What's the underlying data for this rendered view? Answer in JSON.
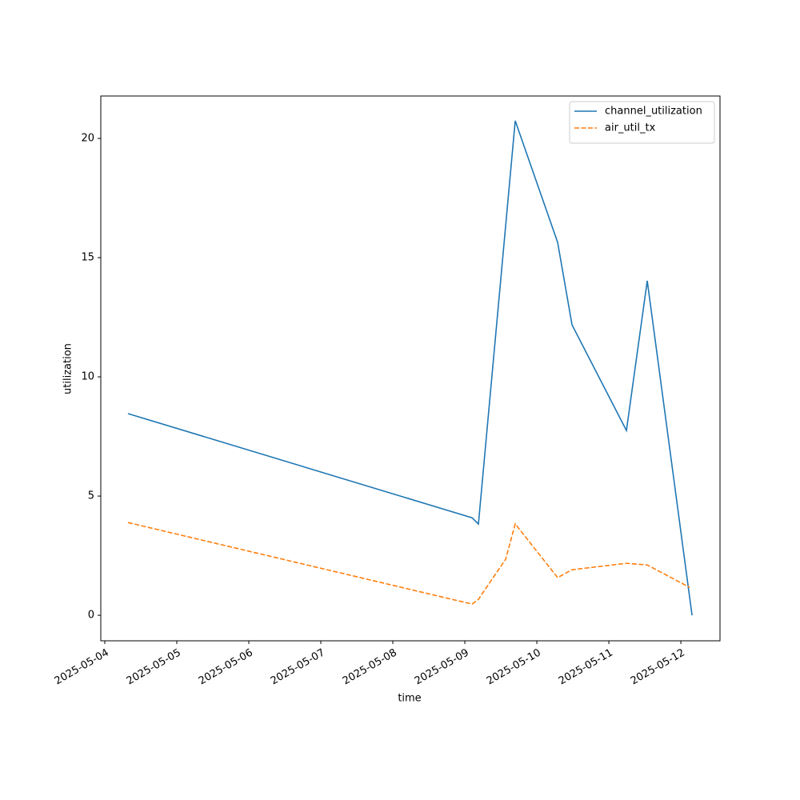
{
  "chart_data": {
    "type": "line",
    "xlabel": "time",
    "ylabel": "utilization",
    "series": [
      {
        "name": "channel_utilization",
        "color": "#1f77b4",
        "linestyle": "solid",
        "x": [
          "2025-05-04 07:43",
          "2025-05-09 02:24",
          "2025-05-09 04:32",
          "2025-05-09 16:48",
          "2025-05-10 06:56",
          "2025-05-10 11:44",
          "2025-05-11 05:52",
          "2025-05-11 12:48",
          "2025-05-12 03:44"
        ],
        "values": [
          8.46,
          4.09,
          3.83,
          20.74,
          15.64,
          12.18,
          7.75,
          14.03,
          0
        ]
      },
      {
        "name": "air_util_tx",
        "color": "#ff7f0e",
        "linestyle": "dashed",
        "x": [
          "2025-05-04 07:43",
          "2025-05-09 02:24",
          "2025-05-09 04:32",
          "2025-05-09 13:36",
          "2025-05-09 16:48",
          "2025-05-10 06:56",
          "2025-05-10 11:44",
          "2025-05-11 05:52",
          "2025-05-11 12:48",
          "2025-05-12 02:56"
        ],
        "values": [
          3.89,
          0.47,
          0.67,
          2.35,
          3.83,
          1.58,
          1.91,
          2.18,
          2.11,
          1.17
        ]
      }
    ],
    "xlim": [
      "2025-05-03 22:40",
      "2025-05-12 13:03"
    ],
    "xticks": [
      "2025-05-04",
      "2025-05-05",
      "2025-05-06",
      "2025-05-07",
      "2025-05-08",
      "2025-05-09",
      "2025-05-10",
      "2025-05-11",
      "2025-05-12"
    ],
    "ylim": [
      -1.07,
      21.78
    ],
    "yticks": [
      0,
      5,
      10,
      15,
      20
    ],
    "grid": false,
    "legend": "upper right"
  }
}
